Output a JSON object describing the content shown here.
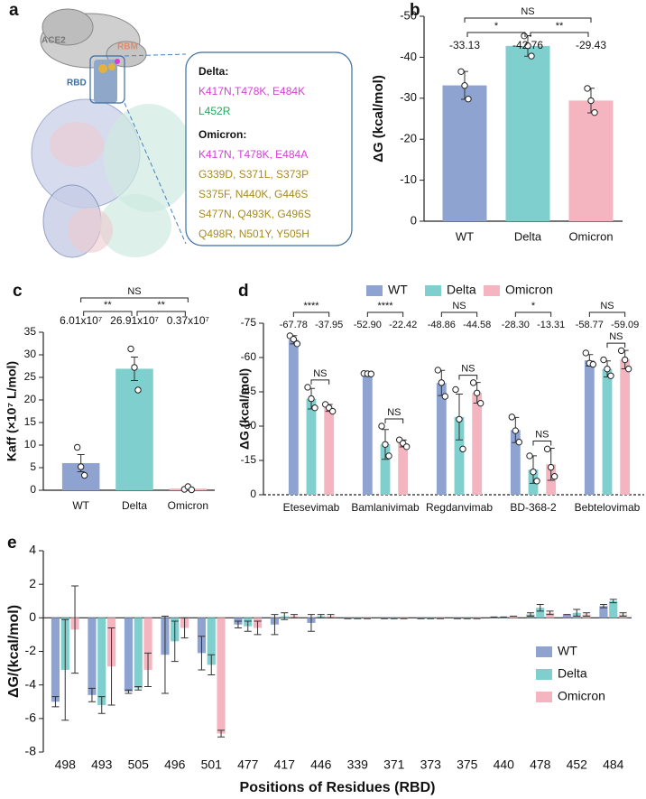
{
  "panel_a": {
    "panel": "a",
    "ace2": "ACE2",
    "rbm": "RBM",
    "rbd": "RBD",
    "box": [
      {
        "title": "Delta:",
        "lines": [
          {
            "text": "K417N,T478K, E484K",
            "color": "#d63fd6"
          },
          {
            "text": "L452R",
            "color": "#22a85a"
          }
        ]
      },
      {
        "title": "Omicron:",
        "lines": [
          {
            "text": "K417N,  T478K,  E484A",
            "color": "#d63fd6"
          },
          {
            "text": "G339D, S371L, S373P",
            "color": "#a78a1e"
          },
          {
            "text": "S375F, N440K, G446S",
            "color": "#a78a1e"
          },
          {
            "text": "S477N, Q493K, G496S",
            "color": "#a78a1e"
          },
          {
            "text": "Q498R, N501Y, Y505H",
            "color": "#a78a1e"
          }
        ]
      }
    ]
  },
  "chart_data": [
    {
      "type": "bar",
      "panel": "b",
      "ylabel": "ΔG (kcal/mol)",
      "categories": [
        "WT",
        "Delta",
        "Omicron"
      ],
      "values": [
        -33.13,
        -42.76,
        -29.43
      ],
      "colors": [
        "#8fa3d1",
        "#7fcfcf",
        "#f5b5c0"
      ],
      "errors": [
        3.4,
        2.5,
        3.0
      ],
      "points": [
        [
          -36.5,
          -33.1,
          -29.8
        ],
        [
          -45.2,
          -42.8,
          -40.3
        ],
        [
          -32.4,
          -29.4,
          -26.5
        ]
      ],
      "ylim": [
        0,
        -50
      ],
      "yticks": [
        0,
        -10,
        -20,
        -30,
        -40,
        -50
      ],
      "significance": [
        {
          "pair": [
            "WT",
            "Omicron"
          ],
          "label": "NS"
        },
        {
          "pair": [
            "WT",
            "Delta"
          ],
          "label": "*"
        },
        {
          "pair": [
            "Delta",
            "Omicron"
          ],
          "label": "**"
        }
      ]
    },
    {
      "type": "bar",
      "panel": "c",
      "ylabel": "Kaff (×10⁷ L/mol)",
      "categories": [
        "WT",
        "Delta",
        "Omicron"
      ],
      "values": [
        6.01,
        26.91,
        0.37
      ],
      "value_labels": [
        "6.01x10⁷",
        "26.91x10⁷",
        "0.37x10⁷"
      ],
      "colors": [
        "#8fa3d1",
        "#7fcfcf",
        "#f5b5c0"
      ],
      "errors": [
        1.9,
        2.6,
        0.2
      ],
      "points": [
        [
          9.5,
          5.2,
          3.3
        ],
        [
          31.3,
          27.2,
          22.2
        ],
        [
          0.2,
          0.8,
          0.1
        ]
      ],
      "ylim": [
        0,
        35
      ],
      "yticks": [
        0,
        5,
        10,
        15,
        20,
        25,
        30,
        35
      ],
      "significance": [
        {
          "pair": [
            "WT",
            "Omicron"
          ],
          "label": "NS"
        },
        {
          "pair": [
            "WT",
            "Delta"
          ],
          "label": "**"
        },
        {
          "pair": [
            "Delta",
            "Omicron"
          ],
          "label": "**"
        }
      ]
    },
    {
      "type": "bar",
      "panel": "d",
      "ylabel": "ΔG (kcal/mol)",
      "categories": [
        "Etesevimab",
        "Bamlanivimab",
        "Regdanvimab",
        "BD-368-2",
        "Bebtelovimab"
      ],
      "series": [
        {
          "name": "WT",
          "color": "#8fa3d1",
          "values": [
            -67.78,
            -52.9,
            -48.86,
            -28.3,
            -58.77
          ],
          "value_labels": [
            "-67.78",
            "-52.90",
            "-48.86",
            "-28.30",
            "-58.77"
          ],
          "errors": [
            1.8,
            0.1,
            5.5,
            5.5,
            2.5
          ],
          "points": [
            [
              -69.5,
              -68,
              -66
            ],
            [
              -53,
              -52.9,
              -52.8
            ],
            [
              -54.5,
              -49,
              -43
            ],
            [
              -34,
              -28,
              -23
            ],
            [
              -62,
              -57.5,
              -57
            ]
          ]
        },
        {
          "name": "Delta",
          "color": "#7fcfcf",
          "values": [
            -42,
            -22,
            -34,
            -11,
            -55
          ],
          "errors": [
            4.5,
            6.5,
            10,
            6,
            3.5
          ],
          "points": [
            [
              -47,
              -42,
              -38
            ],
            [
              -30,
              -22,
              -17
            ],
            [
              -46,
              -33,
              -20
            ],
            [
              -17,
              -10,
              -6
            ],
            [
              -59,
              -55,
              -52
            ]
          ]
        },
        {
          "name": "Omicron",
          "color": "#f5b5c0",
          "values": [
            -37.95,
            -22.42,
            -44.58,
            -13.31,
            -59.09
          ],
          "value_labels": [
            "-37.95",
            "-22.42",
            "-44.58",
            "-13.31",
            "-59.09"
          ],
          "errors": [
            1.5,
            1.5,
            4.5,
            7,
            4
          ],
          "points": [
            [
              -39.5,
              -38,
              -36.5
            ],
            [
              -24,
              -22.5,
              -21
            ],
            [
              -49,
              -44.5,
              -40
            ],
            [
              -20,
              -12,
              -8
            ],
            [
              -63,
              -59,
              -55
            ]
          ]
        }
      ],
      "ylim": [
        0,
        -75
      ],
      "yticks": [
        0,
        -15,
        -30,
        -45,
        -60,
        -75
      ],
      "significance_wt_omicron": [
        "****",
        "****",
        "NS",
        "*",
        "NS"
      ],
      "significance_delta_omicron": [
        "NS",
        "NS",
        "NS",
        "NS",
        "NS"
      ]
    },
    {
      "type": "bar",
      "panel": "e",
      "ylabel": "ΔG/(kcal/mol)",
      "xlabel": "Positions of  Residues (RBD)",
      "categories": [
        "498",
        "493",
        "505",
        "496",
        "501",
        "477",
        "417",
        "446",
        "339",
        "371",
        "373",
        "375",
        "440",
        "478",
        "452",
        "484"
      ],
      "series": [
        {
          "name": "WT",
          "color": "#8fa3d1",
          "values": [
            -5.0,
            -4.6,
            -4.4,
            -2.2,
            -2.1,
            -0.4,
            -0.4,
            -0.3,
            -0.05,
            -0.05,
            -0.05,
            -0.05,
            0.05,
            0.2,
            0.2,
            0.7
          ],
          "errors": [
            0.3,
            0.4,
            0.1,
            2.3,
            1.0,
            0.2,
            0.6,
            0.5,
            0,
            0,
            0,
            0,
            0,
            0.1,
            0,
            0.1
          ]
        },
        {
          "name": "Delta",
          "color": "#7fcfcf",
          "values": [
            -3.1,
            -5.2,
            -4.2,
            -1.4,
            -2.8,
            -0.5,
            0.1,
            0.1,
            -0.05,
            -0.05,
            -0.05,
            -0.05,
            0.05,
            0.6,
            0.3,
            1.0
          ],
          "errors": [
            3.0,
            0.5,
            0.1,
            1.2,
            0.6,
            0.3,
            0.2,
            0.1,
            0,
            0,
            0,
            0,
            0,
            0.2,
            0.2,
            0.1
          ]
        },
        {
          "name": "Omicron",
          "color": "#f5b5c0",
          "values": [
            -0.7,
            -2.9,
            -3.1,
            -0.6,
            -6.9,
            -0.6,
            0.1,
            0.1,
            -0.05,
            -0.05,
            -0.05,
            -0.05,
            0.1,
            0.3,
            0.2,
            0.2
          ],
          "errors": [
            2.6,
            2.3,
            1.0,
            0.6,
            0.2,
            0.4,
            0.1,
            0.1,
            0,
            0,
            0,
            0,
            0,
            0.1,
            0.1,
            0.1
          ]
        }
      ],
      "ylim": [
        -8,
        4
      ],
      "yticks": [
        -8,
        -6,
        -4,
        -2,
        0,
        2,
        4
      ]
    }
  ]
}
